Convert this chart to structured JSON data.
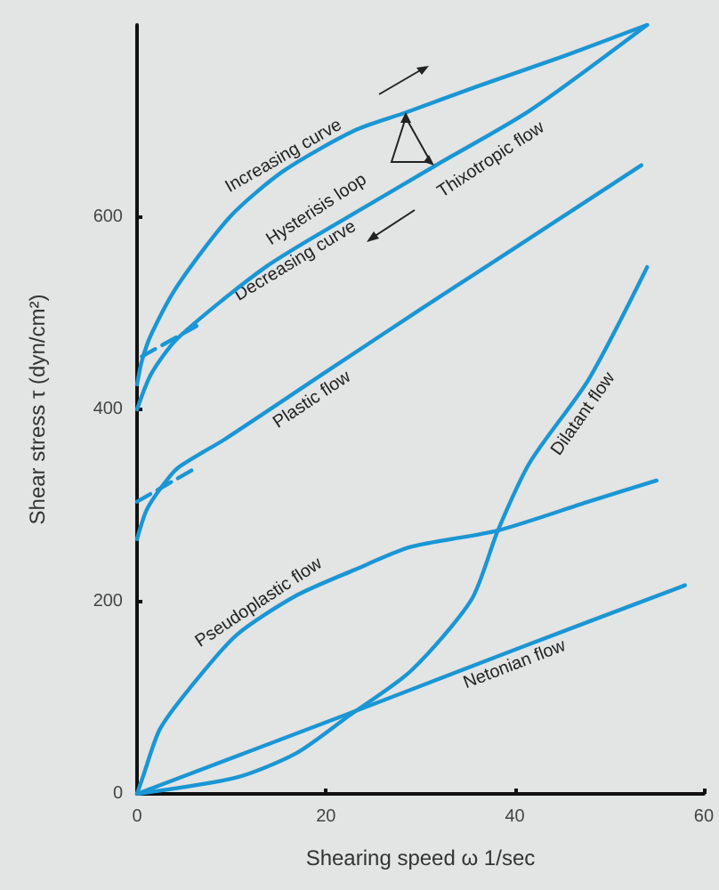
{
  "chart_data": {
    "type": "line",
    "xlabel": "Shearing speed ω 1/sec",
    "ylabel": "Shear stress τ (dyn/cm²)",
    "xlim": [
      0,
      60
    ],
    "xticks": [
      0,
      20,
      40,
      60
    ],
    "ylim": [
      0,
      800
    ],
    "yticks": [
      0,
      200,
      400,
      600
    ],
    "grid": false,
    "legend": false,
    "marker": "none",
    "series": [
      {
        "name": "Increasing curve",
        "color": "#1a96d4",
        "x": [
          0,
          0.5,
          1.5,
          4.3,
          9.9,
          15.5,
          23,
          28.5,
          36,
          45.3,
          54
        ],
        "values": [
          426,
          450,
          478,
          529,
          601,
          648,
          690,
          709,
          736,
          768,
          800
        ]
      },
      {
        "name": "Decreasing curve",
        "color": "#1a96d4",
        "x": [
          0,
          1.5,
          4.3,
          13.6,
          23,
          32,
          41.6,
          54
        ],
        "values": [
          400,
          437,
          474,
          548,
          604,
          656,
          711,
          800
        ]
      },
      {
        "color": "#1a96d4",
        "line_style": "dashed",
        "x": [
          0.5,
          6.7
        ],
        "values": [
          455,
          489
        ]
      },
      {
        "name": "Plastic flow",
        "color": "#1a96d4",
        "x": [
          0,
          1,
          2.5,
          4.3,
          9.3,
          20,
          30,
          40,
          53.4
        ],
        "values": [
          265,
          295,
          318,
          339,
          369,
          439,
          504,
          568,
          654
        ]
      },
      {
        "color": "#1a96d4",
        "line_style": "dashed",
        "x": [
          0,
          6.2
        ],
        "values": [
          304,
          339
        ]
      },
      {
        "name": "Pseudoplastic flow",
        "color": "#1a96d4",
        "x": [
          0,
          0.6,
          2.4,
          5.5,
          10.5,
          16.8,
          23,
          29,
          38.2,
          47.8,
          55
        ],
        "values": [
          0,
          17,
          67,
          109,
          165,
          206,
          233,
          257,
          274,
          304,
          326
        ]
      },
      {
        "name": "Netonian flow",
        "color": "#1a96d4",
        "x": [
          0,
          22,
          40,
          58
        ],
        "values": [
          0,
          82,
          150,
          217
        ]
      },
      {
        "name": "Dilatant flow",
        "color": "#1a96d4",
        "x": [
          0,
          10.5,
          16.8,
          22.4,
          29,
          35.4,
          38.2,
          41.6,
          47.8,
          54
        ],
        "values": [
          0,
          17,
          42,
          81,
          128,
          202,
          274,
          345,
          431,
          548
        ]
      }
    ],
    "annotations": [
      "Hysterisis loop",
      "Thixotropic flow"
    ]
  }
}
